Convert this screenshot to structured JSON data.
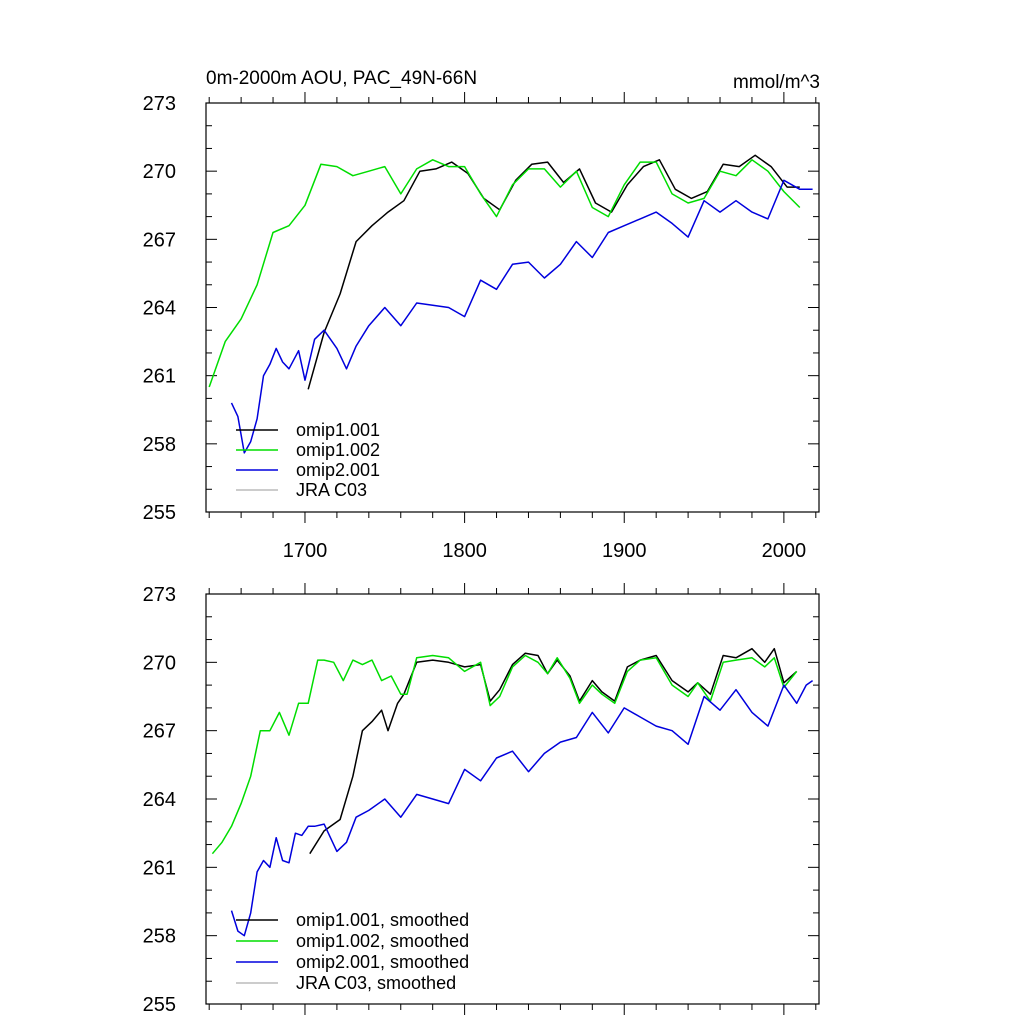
{
  "chart_data": [
    {
      "type": "line",
      "title": "0m-2000m AOU, PAC_49N-66N",
      "units": "mmol/m^3",
      "xlim": [
        1638,
        2022
      ],
      "ylim": [
        255,
        273
      ],
      "yticks": [
        255,
        258,
        261,
        264,
        267,
        270,
        273
      ],
      "xticks": [
        1700,
        1800,
        1900,
        2000
      ],
      "show_xtick_labels": true,
      "legend": "bottom-left",
      "series": [
        {
          "name": "omip1.001",
          "color": "#000000",
          "x": [
            1702,
            1712,
            1722,
            1732,
            1742,
            1752,
            1762,
            1772,
            1782,
            1792,
            1802,
            1812,
            1822,
            1832,
            1842,
            1852,
            1862,
            1872,
            1882,
            1892,
            1902,
            1912,
            1922,
            1932,
            1942,
            1952,
            1962,
            1972,
            1982,
            1992,
            2002,
            2010
          ],
          "y": [
            260.4,
            262.9,
            264.6,
            266.9,
            267.6,
            268.2,
            268.7,
            270.0,
            270.1,
            270.4,
            269.9,
            268.8,
            268.3,
            269.6,
            270.3,
            270.4,
            269.5,
            270.1,
            268.6,
            268.2,
            269.4,
            270.2,
            270.5,
            269.2,
            268.8,
            269.1,
            270.3,
            270.2,
            270.7,
            270.2,
            269.3,
            269.3
          ]
        },
        {
          "name": "omip1.002",
          "color": "#00dd00",
          "x": [
            1640,
            1650,
            1660,
            1670,
            1680,
            1690,
            1700,
            1710,
            1720,
            1730,
            1740,
            1750,
            1760,
            1770,
            1780,
            1790,
            1800,
            1810,
            1820,
            1830,
            1840,
            1850,
            1860,
            1870,
            1880,
            1890,
            1900,
            1910,
            1920,
            1930,
            1940,
            1950,
            1960,
            1970,
            1980,
            1990,
            2000,
            2010
          ],
          "y": [
            260.5,
            262.5,
            263.5,
            265.0,
            267.3,
            267.6,
            268.5,
            270.3,
            270.2,
            269.8,
            270.0,
            270.2,
            269.0,
            270.1,
            270.5,
            270.2,
            270.2,
            269.0,
            268.0,
            269.4,
            270.1,
            270.1,
            269.3,
            270.0,
            268.4,
            268.0,
            269.4,
            270.4,
            270.4,
            269.0,
            268.6,
            268.8,
            270.0,
            269.8,
            270.5,
            270.0,
            269.1,
            268.4
          ]
        },
        {
          "name": "omip2.001",
          "color": "#0000dd",
          "x": [
            1654,
            1658,
            1662,
            1666,
            1670,
            1674,
            1678,
            1682,
            1686,
            1690,
            1696,
            1700,
            1706,
            1712,
            1720,
            1726,
            1732,
            1740,
            1750,
            1760,
            1770,
            1780,
            1790,
            1800,
            1810,
            1820,
            1830,
            1840,
            1850,
            1860,
            1870,
            1880,
            1890,
            1900,
            1910,
            1920,
            1930,
            1940,
            1950,
            1960,
            1970,
            1980,
            1990,
            2000,
            2010,
            2018
          ],
          "y": [
            259.8,
            259.2,
            257.6,
            258.1,
            259.1,
            261.0,
            261.5,
            262.2,
            261.6,
            261.3,
            262.1,
            260.8,
            262.6,
            263.0,
            262.2,
            261.3,
            262.3,
            263.2,
            264.0,
            263.2,
            264.2,
            264.1,
            264.0,
            263.6,
            265.2,
            264.8,
            265.9,
            266.0,
            265.3,
            265.9,
            266.9,
            266.2,
            267.3,
            267.6,
            267.9,
            268.2,
            267.7,
            267.1,
            268.7,
            268.2,
            268.7,
            268.2,
            267.9,
            269.6,
            269.2,
            269.2
          ]
        },
        {
          "name": "JRA C03",
          "color": "#bbbbbb",
          "x": [],
          "y": []
        }
      ]
    },
    {
      "type": "line",
      "title": "",
      "units": "",
      "xlim": [
        1638,
        2022
      ],
      "ylim": [
        255,
        273
      ],
      "yticks": [
        255,
        258,
        261,
        264,
        267,
        270,
        273
      ],
      "xticks": [
        1700,
        1800,
        1900,
        2000
      ],
      "show_xtick_labels": false,
      "legend": "bottom-left",
      "series": [
        {
          "name": "omip1.001, smoothed",
          "color": "#000000",
          "x": [
            1703,
            1712,
            1722,
            1730,
            1736,
            1742,
            1748,
            1752,
            1758,
            1762,
            1770,
            1780,
            1790,
            1800,
            1810,
            1816,
            1822,
            1830,
            1838,
            1846,
            1852,
            1858,
            1866,
            1872,
            1880,
            1886,
            1894,
            1902,
            1910,
            1920,
            1930,
            1940,
            1946,
            1954,
            1962,
            1970,
            1980,
            1988,
            1994,
            2000,
            2008
          ],
          "y": [
            261.6,
            262.6,
            263.1,
            265.0,
            267.0,
            267.4,
            267.9,
            267.0,
            268.2,
            268.6,
            270.0,
            270.1,
            270.0,
            269.8,
            269.9,
            268.3,
            268.8,
            269.9,
            270.4,
            270.3,
            269.5,
            270.1,
            269.4,
            268.3,
            269.2,
            268.7,
            268.3,
            269.8,
            270.1,
            270.3,
            269.2,
            268.7,
            269.1,
            268.6,
            270.3,
            270.2,
            270.6,
            270.0,
            270.6,
            269.1,
            269.6
          ]
        },
        {
          "name": "omip1.002, smoothed",
          "color": "#00dd00",
          "x": [
            1642,
            1648,
            1654,
            1660,
            1666,
            1672,
            1678,
            1684,
            1690,
            1696,
            1702,
            1708,
            1712,
            1718,
            1724,
            1730,
            1736,
            1742,
            1748,
            1754,
            1760,
            1764,
            1770,
            1780,
            1790,
            1800,
            1810,
            1816,
            1822,
            1830,
            1838,
            1846,
            1852,
            1858,
            1866,
            1872,
            1880,
            1886,
            1894,
            1902,
            1910,
            1920,
            1930,
            1940,
            1946,
            1954,
            1962,
            1970,
            1980,
            1988,
            1994,
            2000,
            2008
          ],
          "y": [
            261.6,
            262.1,
            262.8,
            263.8,
            265.0,
            267.0,
            267.0,
            267.8,
            266.8,
            268.2,
            268.2,
            270.1,
            270.1,
            270.0,
            269.2,
            270.1,
            269.9,
            270.1,
            269.2,
            269.4,
            268.6,
            268.6,
            270.2,
            270.3,
            270.2,
            269.6,
            270.0,
            268.1,
            268.5,
            269.8,
            270.3,
            270.0,
            269.5,
            270.2,
            269.3,
            268.2,
            269.0,
            268.6,
            268.2,
            269.6,
            270.1,
            270.2,
            269.0,
            268.5,
            269.1,
            268.3,
            270.0,
            270.1,
            270.2,
            269.8,
            270.2,
            268.9,
            269.6
          ]
        },
        {
          "name": "omip2.001, smoothed",
          "color": "#0000dd",
          "x": [
            1654,
            1658,
            1662,
            1666,
            1670,
            1674,
            1678,
            1682,
            1686,
            1690,
            1694,
            1698,
            1702,
            1706,
            1712,
            1720,
            1726,
            1732,
            1740,
            1750,
            1760,
            1770,
            1780,
            1790,
            1800,
            1810,
            1820,
            1830,
            1840,
            1850,
            1860,
            1870,
            1880,
            1890,
            1900,
            1910,
            1920,
            1930,
            1940,
            1950,
            1960,
            1970,
            1980,
            1990,
            2000,
            2008,
            2014,
            2018
          ],
          "y": [
            259.1,
            258.2,
            258.0,
            259.0,
            260.8,
            261.3,
            261.0,
            262.3,
            261.3,
            261.2,
            262.5,
            262.4,
            262.8,
            262.8,
            262.9,
            261.7,
            262.1,
            263.2,
            263.5,
            264.0,
            263.2,
            264.2,
            264.0,
            263.8,
            265.3,
            264.8,
            265.8,
            266.1,
            265.2,
            266.0,
            266.5,
            266.7,
            267.8,
            266.9,
            268.0,
            267.6,
            267.2,
            267.0,
            266.4,
            268.5,
            267.9,
            268.8,
            267.8,
            267.2,
            269.0,
            268.2,
            269.0,
            269.2
          ]
        },
        {
          "name": "JRA C03, smoothed",
          "color": "#bbbbbb",
          "x": [],
          "y": []
        }
      ]
    }
  ]
}
